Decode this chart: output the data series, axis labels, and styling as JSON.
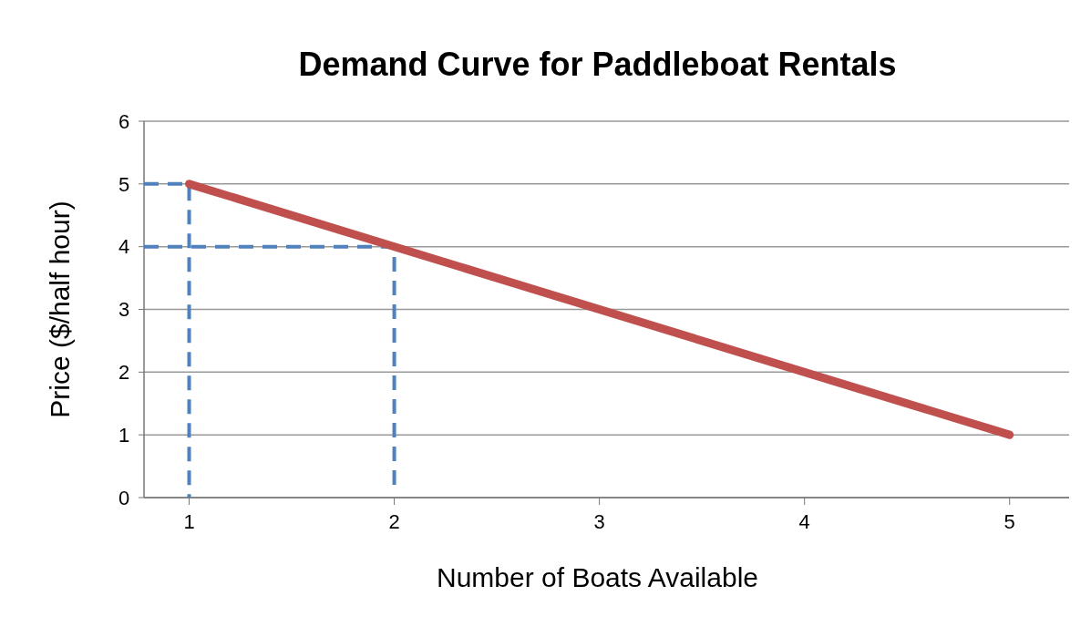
{
  "chart_data": {
    "type": "line",
    "title": "Demand Curve for Paddleboat Rentals",
    "xlabel": "Number of Boats Available",
    "ylabel": "Price ($/half hour)",
    "xlim": [
      0.78,
      5.29
    ],
    "xticks": [
      1,
      2,
      3,
      4,
      5
    ],
    "ylim": [
      0,
      6
    ],
    "yticks": [
      0,
      1,
      2,
      3,
      4,
      5,
      6
    ],
    "grid": "y",
    "marker": "none",
    "series": [
      {
        "color": "#4f81bd",
        "line_style": "dashed",
        "x": [
          0.78,
          1,
          1
        ],
        "values": [
          5,
          5,
          0
        ]
      },
      {
        "color": "#4f81bd",
        "line_style": "dashed",
        "x": [
          0.78,
          2,
          2
        ],
        "values": [
          4,
          4,
          0.2
        ]
      },
      {
        "color": "#c0504d",
        "line_style": "solid",
        "x": [
          1,
          5
        ],
        "values": [
          5,
          1
        ]
      }
    ]
  }
}
